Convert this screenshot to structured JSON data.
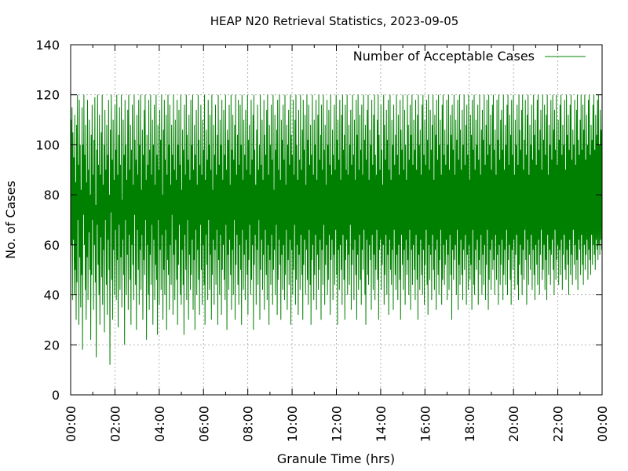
{
  "chart_data": {
    "type": "line",
    "title": "HEAP N20 Retrieval Statistics, 2023-09-05",
    "xlabel": "Granule Time (hrs)",
    "ylabel": "No. of Cases",
    "xlim": [
      0,
      24
    ],
    "ylim": [
      0,
      140
    ],
    "x_ticks": [
      "00:00",
      "02:00",
      "04:00",
      "06:00",
      "08:00",
      "10:00",
      "12:00",
      "14:00",
      "16:00",
      "18:00",
      "20:00",
      "22:00",
      "00:00"
    ],
    "y_ticks": [
      "0",
      "20",
      "40",
      "60",
      "80",
      "100",
      "120",
      "140"
    ],
    "grid": true,
    "legend_position": "top-right",
    "series": [
      {
        "name": "Number of Acceptable Cases",
        "color": "#008000",
        "x_units": "hours",
        "sample_interval_hours": 0.0222,
        "values": [
          47,
          110,
          60,
          115,
          38,
          105,
          62,
          95,
          40,
          112,
          50,
          85,
          30,
          108,
          45,
          120,
          70,
          92,
          28,
          118,
          55,
          100,
          35,
          82,
          48,
          115,
          18,
          100,
          72,
          120,
          60,
          96,
          42,
          108,
          30,
          85,
          55,
          118,
          38,
          90,
          65,
          110,
          50,
          80,
          22,
          104,
          48,
          116,
          70,
          88,
          34,
          102,
          60,
          119,
          45,
          76,
          15,
          98,
          68,
          120,
          52,
          92,
          40,
          112,
          28,
          88,
          63,
          105,
          47,
          120,
          36,
          84,
          58,
          100,
          25,
          114,
          70,
          90,
          44,
          108,
          32,
          96,
          62,
          118,
          50,
          80,
          12,
          106,
          73,
          120,
          46,
          94,
          30,
          110,
          58,
          86,
          40,
          116,
          66,
          98,
          38,
          120,
          54,
          88,
          27,
          104,
          68,
          115,
          42,
          92,
          55,
          120,
          35,
          78,
          62,
          110,
          48,
          96,
          20,
          118,
          70,
          100,
          40,
          86,
          56,
          114,
          34,
          120,
          64,
          90,
          46,
          108,
          28,
          98,
          60,
          116,
          52,
          84,
          38,
          120,
          72,
          102,
          44,
          94,
          26,
          112,
          66,
          88,
          50,
          118,
          36,
          100,
          58,
          120,
          42,
          82,
          64,
          106,
          30,
          96,
          54,
          114,
          48,
          120,
          70,
          86,
          22,
          104,
          60,
          92,
          40,
          118,
          34,
          98,
          56,
          120,
          44,
          88,
          68,
          110,
          28,
          100,
          62,
          116,
          38,
          84,
          52,
          120,
          46,
          96,
          24,
          108,
          70,
          90,
          36,
          114,
          58,
          102,
          42,
          120,
          64,
          80,
          30,
          106,
          50,
          118,
          40,
          94,
          66,
          112,
          26,
          88,
          54,
          120,
          48,
          100,
          34,
          116,
          60,
          84,
          44,
          108,
          72,
          96,
          32,
          120,
          56,
          90,
          38,
          110,
          62,
          86,
          46,
          118,
          28,
          100,
          52,
          114,
          68,
          92,
          40,
          120,
          36,
          82,
          58,
          106,
          44,
          98,
          24,
          116,
          64,
          88,
          50,
          120,
          38,
          104,
          70,
          94,
          30,
          112,
          56,
          86,
          42,
          118,
          48,
          100,
          62,
          120,
          34,
          90,
          54,
          108,
          26,
          96,
          66,
          114,
          40,
          84,
          58,
          120,
          46,
          102,
          32,
          92,
          68,
          116,
          50,
          88,
          36,
          110,
          60,
          98,
          44,
          120,
          28,
          86,
          64,
          106,
          52,
          94,
          38,
          118,
          70,
          100,
          42,
          112,
          56,
          90,
          30,
          120,
          48,
          82,
          62,
          108,
          36,
          96,
          58,
          116,
          44,
          88,
          66,
          104,
          28,
          120,
          54,
          92,
          40,
          110,
          64,
          100,
          32,
          118,
          50,
          86,
          60,
          114,
          46,
          96,
          38,
          120,
          68,
          90,
          26,
          106,
          56,
          102,
          42,
          116,
          62,
          84,
          48,
          120,
          34,
          98,
          58,
          112,
          40,
          94,
          70,
          108,
          30,
          120,
          52,
          88,
          64,
          104,
          44,
          118,
          36,
          92,
          60,
          116,
          50,
          100,
          28,
          120,
          66,
          86,
          42,
          110,
          56,
          96,
          38,
          114,
          62,
          90,
          48,
          120,
          32,
          102,
          54,
          108,
          68,
          88,
          40,
          118,
          46,
          94,
          60,
          112,
          26,
          120,
          52,
          98,
          64,
          84,
          36,
          106,
          58,
          116,
          44,
          90,
          70,
          100,
          30,
          120,
          50,
          92,
          62,
          110,
          42,
          86,
          56,
          118,
          34,
          104,
          66,
          96,
          48,
          114,
          38,
          120,
          60,
          88,
          28,
          108,
          54,
          100,
          44,
          116,
          64,
          94,
          36,
          120,
          50,
          82,
          58,
          112,
          40,
          98,
          68,
          106,
          32,
          118,
          46,
          90,
          62,
          120,
          52,
          86,
          30,
          110,
          56,
          102,
          42,
          116,
          60,
          94,
          38,
          120,
          48,
          84,
          66,
          108,
          34,
          100,
          54,
          114,
          44,
          92,
          62,
          120,
          28,
          104,
          58,
          96,
          40,
          118,
          50,
          88,
          68,
          110,
          36,
          120,
          46,
          100,
          60,
          86,
          32,
          114,
          56,
          94,
          42,
          120,
          64,
          90,
          48,
          106,
          30,
          118,
          52,
          98,
          62,
          112,
          40,
          84,
          58,
          120,
          46,
          102,
          36,
          116,
          66,
          92,
          44,
          108,
          28,
          96,
          54,
          120,
          60,
          88,
          38,
          110,
          48,
          100,
          64,
          118,
          34,
          86,
          56,
          112,
          42,
          120,
          50,
          94,
          62,
          104,
          30,
          116,
          58,
          90,
          44,
          120,
          68,
          98,
          36,
          108,
          52,
          84,
          60,
          118,
          40,
          100,
          46,
          114,
          64,
          92,
          32,
          120,
          54,
          88,
          62,
          106,
          38,
          96,
          56,
          116,
          44,
          90,
          66,
          120,
          48,
          102,
          28,
          110,
          58,
          94,
          42,
          118,
          60,
          86,
          50,
          112,
          36,
          120,
          64,
          98,
          46,
          104,
          30,
          116,
          54,
          90,
          62,
          120,
          40,
          88,
          56,
          108,
          44,
          100,
          68,
          114,
          34,
          92,
          52,
          120,
          58,
          96,
          38,
          110,
          62,
          86,
          48,
          118,
          30,
          104,
          56,
          120,
          42,
          90,
          64,
          112,
          46,
          98,
          36,
          116,
          58,
          88,
          50,
          120,
          66,
          102,
          40,
          108,
          28,
          94,
          62,
          114,
          48,
          120,
          44,
          86,
          60,
          106,
          54,
          100,
          34,
          118,
          64,
          92,
          42,
          112,
          56,
          120,
          38,
          96,
          50,
          88,
          66,
          110,
          46,
          120,
          30,
          104,
          58,
          90,
          62,
          116,
          42,
          98,
          52,
          84,
          60,
          120,
          36,
          108,
          48,
          94,
          64,
          114,
          40,
          102,
          56,
          118,
          32,
          90,
          62,
          120,
          50,
          86,
          44,
          110,
          58,
          100,
          34,
          116,
          66,
          92,
          48,
          104,
          42,
          120,
          56,
          96,
          38,
          112,
          60,
          88,
          46,
          118,
          30,
          106,
          64,
          98,
          52,
          120,
          42,
          90,
          58,
          114,
          36,
          100,
          62,
          86,
          48,
          120,
          54,
          108,
          40,
          94,
          66,
          116,
          34,
          104,
          58,
          120,
          44,
          92,
          60,
          110,
          50,
          98,
          38,
          118,
          64,
          90,
          46,
          112,
          30,
          120,
          56,
          100,
          42,
          106,
          62,
          88,
          48,
          116,
          40,
          120,
          58,
          96,
          36,
          110,
          52,
          92,
          66,
          118,
          44,
          102,
          32,
          120,
          60,
          90,
          46,
          114,
          56,
          98,
          38,
          108,
          64,
          120,
          50,
          86,
          42,
          112,
          58,
          104,
          34,
          118,
          62,
          94,
          48,
          120,
          40,
          100,
          54,
          110,
          66,
          88,
          36,
          116,
          46,
          120,
          60,
          96,
          44,
          106,
          52,
          92,
          62,
          118,
          38,
          100,
          56,
          120,
          42,
          90,
          64,
          112,
          48,
          104,
          30,
          116,
          58,
          98,
          46,
          120,
          54,
          88,
          60,
          110,
          40,
          102,
          66,
          118,
          34,
          94,
          52,
          120,
          44,
          106,
          62,
          90,
          48,
          114,
          38,
          100,
          58,
          120,
          50,
          92,
          64,
          108,
          36,
          116,
          56,
          96,
          42,
          120,
          60,
          86,
          46,
          112,
          52,
          104,
          34,
          118,
          66,
          98,
          44,
          120,
          40,
          90,
          58,
          110,
          50,
          100,
          62,
          116,
          36,
          94,
          54,
          120,
          48,
          88,
          64,
          106,
          40,
          114,
          56,
          102,
          44,
          120,
          60,
          92,
          38,
          108,
          52,
          118,
          66,
          96,
          34,
          120,
          46,
          100,
          58,
          112,
          42,
          90,
          62,
          116,
          50,
          120,
          54,
          98,
          40,
          106,
          64,
          88,
          46,
          118,
          56,
          102,
          36,
          120,
          60,
          94,
          44,
          110,
          52,
          114,
          62,
          98,
          38,
          120,
          48,
          90,
          58,
          108,
          44,
          100,
          66,
          116,
          40,
          120,
          54,
          92,
          60,
          112,
          46,
          104,
          36,
          118,
          58,
          96,
          50,
          120,
          62,
          88,
          42,
          110,
          56,
          100,
          64,
          116,
          44,
          92,
          38,
          120,
          52,
          106,
          60,
          98,
          48,
          114,
          40,
          120,
          58,
          90,
          46,
          102,
          66,
          118,
          54,
          96,
          36,
          112,
          62,
          120,
          44,
          88,
          56,
          108,
          50,
          100,
          64,
          116,
          42,
          94,
          58,
          120,
          48,
          104,
          38,
          110,
          60,
          92,
          52,
          118,
          44,
          120,
          62,
          98,
          40,
          106,
          56,
          114,
          66,
          90,
          46,
          120,
          50,
          102,
          60,
          116,
          42,
          96,
          54,
          112,
          38,
          120,
          64,
          88,
          48,
          108,
          58,
          100,
          44,
          118,
          56,
          94,
          62,
          120,
          50,
          106,
          40,
          114,
          66,
          98,
          46,
          120,
          54,
          92,
          60,
          110,
          44,
          102,
          58,
          116,
          48,
          120,
          62,
          96,
          42,
          108,
          56,
          100,
          64,
          118,
          50,
          90,
          46,
          120,
          58,
          104,
          52,
          112,
          40,
          98,
          62,
          116,
          48,
          120,
          56,
          94,
          44,
          106,
          66,
          100,
          52,
          118,
          60,
          92,
          46,
          114,
          54,
          120,
          42,
          102,
          62,
          96,
          58,
          110,
          48,
          120,
          64,
          98,
          52,
          116,
          44,
          106,
          60,
          120,
          50,
          94,
          56,
          112,
          62,
          100,
          46,
          118,
          58,
          120,
          54,
          96,
          48,
          108,
          64,
          102,
          52,
          116,
          60,
          120,
          56,
          98,
          50,
          112,
          62,
          104,
          58,
          118,
          54,
          120,
          60,
          100,
          56,
          114,
          62,
          106,
          58,
          120
        ]
      }
    ]
  }
}
